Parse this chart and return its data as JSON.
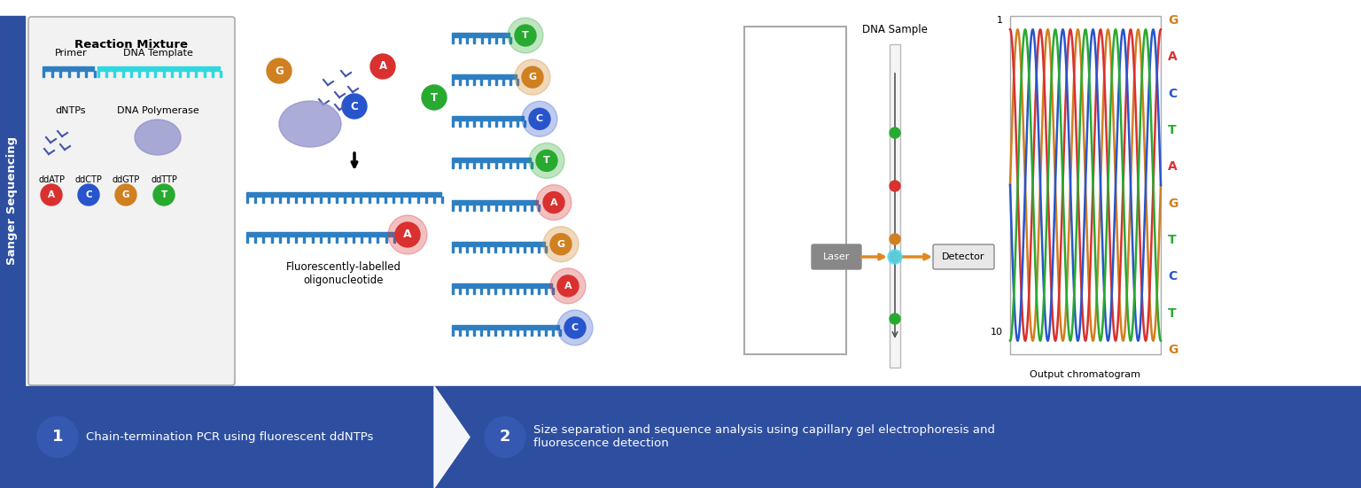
{
  "bg_color": "#ffffff",
  "sidebar_color": "#2e4fa0",
  "sidebar_text": "Sanger Sequencing",
  "sidebar_text_color": "#ffffff",
  "bottom_bar_color": "#2e4fa0",
  "reaction_box_color": "#f2f2f2",
  "reaction_box_border": "#aaaaaa",
  "reaction_title": "Reaction Mixture",
  "primer_color": "#2e7fc2",
  "template_color": "#30d8e0",
  "ddATP_color": "#d93030",
  "ddCTP_color": "#2855cc",
  "ddGTP_color": "#d08020",
  "ddTTP_color": "#28aa30",
  "poly_color": "#9090cc",
  "dna_colors": {
    "G": "#d08020",
    "A": "#d93030",
    "C": "#2855cc",
    "T": "#28aa30"
  },
  "chromatogram_colors": {
    "G": "#d08020",
    "A": "#d93030",
    "C": "#2855cc",
    "T": "#28aa30"
  },
  "fluorescent_label": "Fluorescently-labelled\noligonucleotide",
  "dna_sample_label": "DNA Sample",
  "laser_label": "Laser",
  "detector_label": "Detector",
  "output_label": "Output chromatogram",
  "step1_text": "Chain-termination PCR using fluorescent ddNTPs",
  "step2_text": "Size separation and sequence analysis using capillary gel electrophoresis and\nfluorescence detection",
  "fragments": [
    {
      "label": "T",
      "nticks": 4
    },
    {
      "label": "G",
      "nticks": 5
    },
    {
      "label": "C",
      "nticks": 6
    },
    {
      "label": "T",
      "nticks": 7
    },
    {
      "label": "A",
      "nticks": 8
    },
    {
      "label": "G",
      "nticks": 9
    },
    {
      "label": "A",
      "nticks": 10
    },
    {
      "label": "C",
      "nticks": 11
    }
  ],
  "chromatogram_sequence": [
    "G",
    "A",
    "C",
    "T",
    "A",
    "G",
    "T",
    "C",
    "T",
    "G"
  ]
}
